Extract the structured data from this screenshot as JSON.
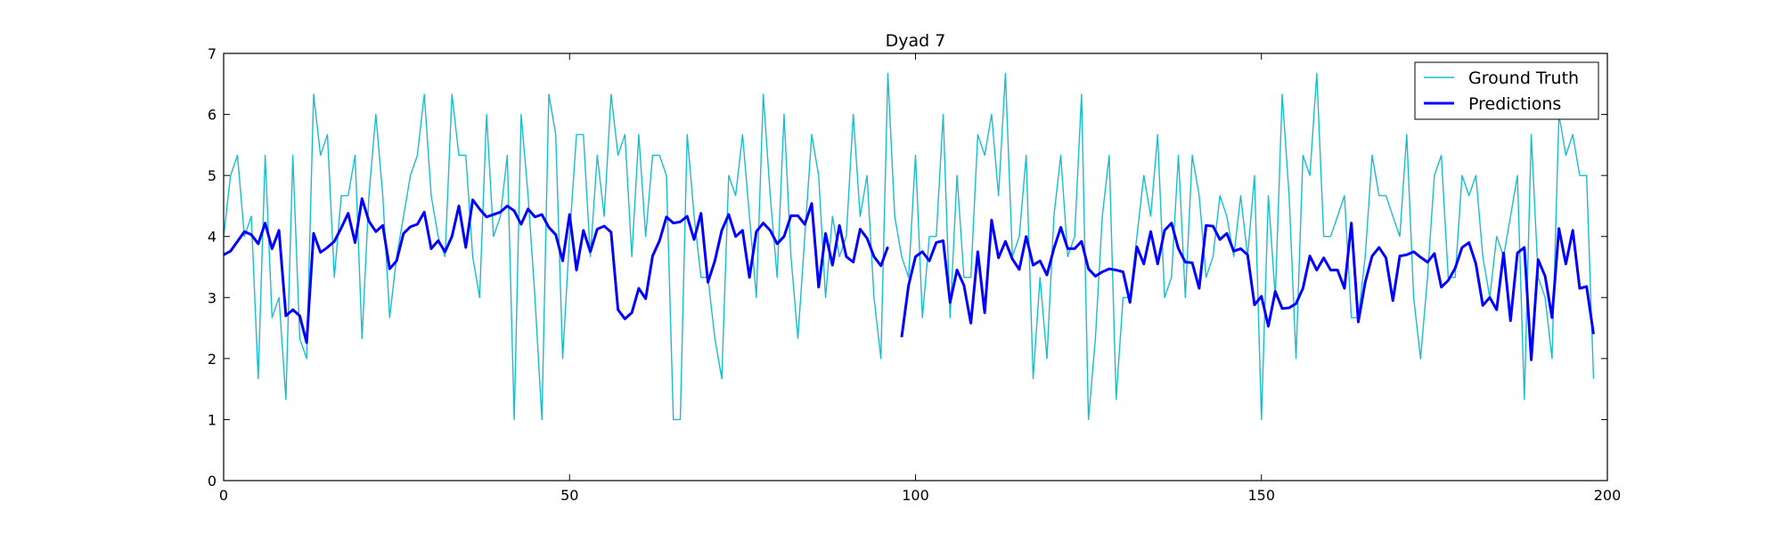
{
  "chart_data": {
    "type": "line",
    "title": "Dyad 7",
    "xlabel": "",
    "ylabel": "",
    "xlim": [
      0,
      200
    ],
    "ylim": [
      0,
      7
    ],
    "xticks": [
      0,
      50,
      100,
      150,
      200
    ],
    "yticks": [
      0,
      1,
      2,
      3,
      4,
      5,
      6,
      7
    ],
    "grid": false,
    "legend_position": "top-right",
    "series": [
      {
        "name": "Ground Truth",
        "color": "#17becf",
        "width": "thin",
        "x_start": 0,
        "values": [
          4.0,
          5.0,
          5.33,
          4.0,
          4.33,
          1.67,
          5.33,
          2.67,
          3.0,
          1.33,
          5.33,
          2.33,
          2.0,
          6.33,
          5.33,
          5.67,
          3.33,
          4.67,
          4.67,
          5.33,
          2.33,
          4.67,
          6.0,
          4.67,
          2.67,
          3.67,
          4.33,
          5.0,
          5.33,
          6.33,
          4.67,
          4.0,
          3.67,
          6.33,
          5.33,
          5.33,
          3.67,
          3.0,
          6.0,
          4.0,
          4.33,
          5.33,
          1.0,
          6.0,
          4.67,
          3.0,
          1.0,
          6.33,
          5.67,
          2.0,
          4.0,
          5.67,
          5.67,
          3.67,
          5.33,
          4.33,
          6.33,
          5.33,
          5.67,
          3.67,
          5.67,
          4.0,
          5.33,
          5.33,
          5.0,
          1.0,
          1.0,
          5.67,
          4.33,
          3.33,
          3.33,
          2.33,
          1.67,
          5.0,
          4.67,
          5.67,
          4.33,
          3.0,
          6.33,
          4.67,
          3.33,
          6.0,
          3.67,
          2.33,
          4.0,
          5.67,
          5.0,
          3.0,
          4.33,
          3.67,
          4.0,
          6.0,
          4.33,
          5.0,
          3.0,
          2.0,
          6.67,
          4.33,
          3.67,
          3.33,
          5.33,
          2.67,
          4.0,
          4.0,
          6.0,
          2.67,
          5.0,
          3.33,
          3.33,
          5.67,
          5.33,
          6.0,
          4.67,
          6.67,
          3.67,
          4.0,
          5.33,
          1.67,
          3.33,
          2.0,
          4.33,
          5.33,
          3.67,
          4.0,
          6.33,
          1.0,
          2.33,
          4.33,
          5.33,
          1.33,
          3.0,
          3.0,
          4.0,
          5.0,
          4.33,
          5.67,
          3.0,
          3.33,
          5.33,
          3.0,
          5.33,
          4.67,
          3.33,
          3.67,
          4.67,
          4.33,
          3.67,
          4.67,
          3.67,
          5.0,
          1.0,
          4.67,
          3.0,
          6.33,
          4.67,
          2.0,
          5.33,
          5.0,
          6.67,
          4.0,
          4.0,
          4.33,
          4.67,
          2.67,
          2.67,
          3.67,
          5.33,
          4.67,
          4.67,
          4.33,
          4.0,
          5.67,
          3.0,
          2.0,
          3.33,
          5.0,
          5.33,
          3.33,
          3.33,
          5.0,
          4.67,
          5.0,
          3.67,
          3.0,
          4.0,
          3.67,
          4.33,
          5.0,
          1.33,
          5.67,
          3.33,
          3.0,
          2.0,
          6.0,
          5.33,
          5.67,
          5.0,
          5.0,
          1.67
        ]
      },
      {
        "name": "Predictions",
        "color": "#0000ff",
        "width": "thick",
        "segments": [
          {
            "x_start": 0,
            "values": [
              3.7,
              3.76,
              3.92,
              4.08,
              4.03,
              3.88,
              4.22,
              3.8,
              4.1,
              2.7,
              2.8,
              2.7,
              2.26,
              4.05,
              3.74,
              3.82,
              3.92,
              4.14,
              4.38,
              3.9,
              4.62,
              4.25,
              4.08,
              4.18,
              3.47,
              3.6,
              4.05,
              4.16,
              4.2,
              4.4,
              3.8,
              3.93,
              3.75,
              4.0,
              4.5,
              3.82,
              4.6,
              4.45,
              4.32,
              4.36,
              4.4,
              4.5,
              4.42,
              4.2,
              4.45,
              4.32,
              4.36,
              4.15,
              4.03,
              3.6,
              4.36,
              3.45,
              4.1,
              3.75,
              4.12,
              4.17,
              4.07,
              2.8,
              2.65,
              2.75,
              3.15,
              2.98,
              3.68,
              3.93,
              4.32,
              4.22,
              4.24,
              4.33,
              3.95,
              4.38,
              3.25,
              3.6,
              4.1,
              4.36,
              4.0,
              4.1,
              3.33,
              4.08,
              4.22,
              4.1,
              3.88,
              4.0,
              4.34,
              4.34,
              4.2,
              4.54,
              3.17,
              4.05,
              3.53,
              4.18,
              3.67,
              3.58,
              4.12,
              3.97,
              3.67,
              3.52,
              3.83
            ]
          },
          {
            "x_start": 98,
            "values": [
              2.35,
              3.2,
              3.67,
              3.75,
              3.6,
              3.9,
              3.93,
              2.92,
              3.45,
              3.2,
              2.58,
              3.75,
              2.75,
              4.27,
              3.65,
              3.92,
              3.63,
              3.46,
              4.0,
              3.53,
              3.6,
              3.37,
              3.8,
              4.15,
              3.8,
              3.8,
              3.92,
              3.47,
              3.35,
              3.42,
              3.47,
              3.45,
              3.42,
              2.92,
              3.83,
              3.55,
              4.08,
              3.55,
              4.1,
              4.22,
              3.8,
              3.58,
              3.57,
              3.15,
              4.18,
              4.17,
              3.95,
              4.05,
              3.76,
              3.8,
              3.7,
              2.88,
              3.02,
              2.53,
              3.1,
              2.82,
              2.83,
              2.9,
              3.15,
              3.68,
              3.45,
              3.65,
              3.45,
              3.45,
              3.15,
              4.22,
              2.6,
              3.25,
              3.68,
              3.82,
              3.65,
              2.95,
              3.68,
              3.7,
              3.75,
              3.66,
              3.58,
              3.72,
              3.17,
              3.28,
              3.48,
              3.82,
              3.9,
              3.55,
              2.87,
              3.0,
              2.8,
              3.73,
              2.62,
              3.73,
              3.82,
              1.98,
              3.62,
              3.35,
              2.67,
              4.13,
              3.55,
              4.1,
              3.15,
              3.18,
              2.4
            ]
          }
        ]
      }
    ]
  }
}
